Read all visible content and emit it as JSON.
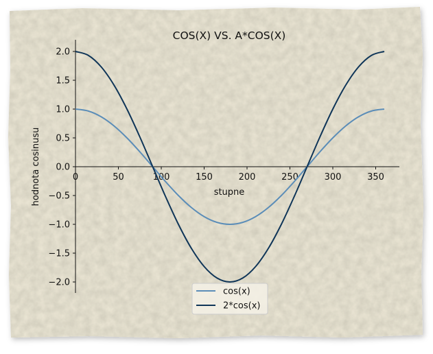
{
  "chart_data": {
    "type": "line",
    "title": "COS(X) VS. A*COS(X)",
    "xlabel": "stupne",
    "ylabel": "hodnota cosinusu",
    "xlim": [
      0,
      360
    ],
    "ylim": [
      -2.2,
      2.2
    ],
    "x_ticks": [
      0,
      50,
      100,
      150,
      200,
      250,
      300,
      350
    ],
    "x_tick_labels": [
      "0",
      "50",
      "100",
      "150",
      "200",
      "250",
      "300",
      "350"
    ],
    "y_ticks": [
      2.0,
      1.5,
      1.0,
      0.5,
      0.0,
      -0.5,
      -1.0,
      -1.5,
      -2.0
    ],
    "y_tick_labels": [
      "2.0",
      "1.5",
      "1.0",
      "0.5",
      "0.0",
      "−0.5",
      "−1.0",
      "−1.5",
      "−2.0"
    ],
    "grid": false,
    "legend_position": "bottom-center",
    "x": [
      0,
      15,
      30,
      45,
      60,
      75,
      90,
      105,
      120,
      135,
      150,
      165,
      180,
      195,
      210,
      225,
      240,
      255,
      270,
      285,
      300,
      315,
      330,
      345,
      360
    ],
    "series": [
      {
        "name": "cos(x)",
        "color": "#5b8db8",
        "values": [
          1.0,
          0.966,
          0.866,
          0.707,
          0.5,
          0.259,
          0.0,
          -0.259,
          -0.5,
          -0.707,
          -0.866,
          -0.966,
          -1.0,
          -0.966,
          -0.866,
          -0.707,
          -0.5,
          -0.259,
          0.0,
          0.259,
          0.5,
          0.707,
          0.866,
          0.966,
          1.0
        ]
      },
      {
        "name": "2*cos(x)",
        "color": "#0f3558",
        "values": [
          2.0,
          1.932,
          1.732,
          1.414,
          1.0,
          0.518,
          0.0,
          -0.518,
          -1.0,
          -1.414,
          -1.732,
          -1.932,
          -2.0,
          -1.932,
          -1.732,
          -1.414,
          -1.0,
          -0.518,
          0.0,
          0.518,
          1.0,
          1.414,
          1.732,
          1.932,
          2.0
        ]
      }
    ]
  }
}
